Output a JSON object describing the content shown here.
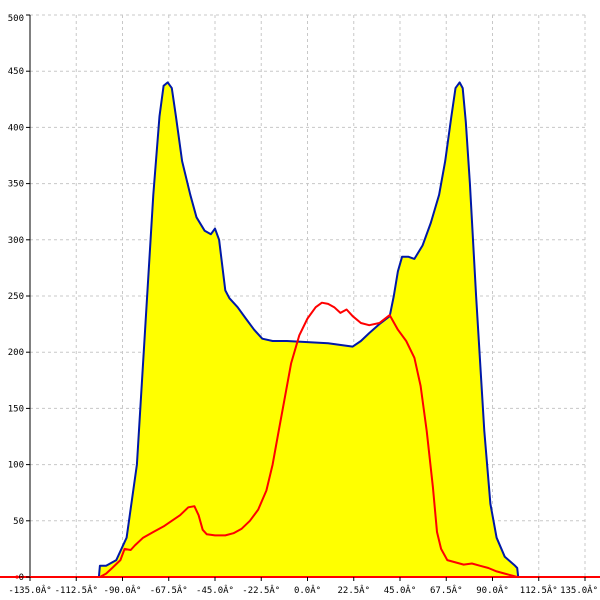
{
  "chart_data": {
    "type": "area",
    "title": "",
    "xlabel": "",
    "ylabel": "",
    "xlim": [
      -135,
      135
    ],
    "ylim": [
      0,
      500
    ],
    "grid": true,
    "x_ticks": [
      -135,
      -112.5,
      -90,
      -67.5,
      -45,
      -22.5,
      0,
      22.5,
      45,
      67.5,
      90,
      112.5,
      135
    ],
    "x_tick_labels": [
      "-135.0Â°",
      "-112.5Â°",
      "-90.0Â°",
      "-67.5Â°",
      "-45.0Â°",
      "-22.5Â°",
      "0.0Â°",
      "22.5Â°",
      "45.0Â°",
      "67.5Â°",
      "90.0Â°",
      "112.5Â°",
      "135.0Â°"
    ],
    "y_ticks": [
      0,
      50,
      100,
      150,
      200,
      250,
      300,
      350,
      400,
      450,
      500
    ],
    "y_tick_labels": [
      "0",
      "50",
      "100",
      "150",
      "200",
      "250",
      "300",
      "350",
      "400",
      "450",
      "500"
    ],
    "series": [
      {
        "color": "#0018a8",
        "fill": "#ffff00",
        "points": [
          [
            -101.5,
            0
          ],
          [
            -101,
            10
          ],
          [
            -98,
            10
          ],
          [
            -93,
            15
          ],
          [
            -88,
            35
          ],
          [
            -83,
            100
          ],
          [
            -79,
            220
          ],
          [
            -75,
            340
          ],
          [
            -72,
            410
          ],
          [
            -70,
            437
          ],
          [
            -68,
            440
          ],
          [
            -66,
            435
          ],
          [
            -64,
            410
          ],
          [
            -61,
            370
          ],
          [
            -57,
            340
          ],
          [
            -54,
            320
          ],
          [
            -50,
            308
          ],
          [
            -47,
            305
          ],
          [
            -45,
            310
          ],
          [
            -43,
            300
          ],
          [
            -40,
            255
          ],
          [
            -38,
            248
          ],
          [
            -34,
            240
          ],
          [
            -30,
            230
          ],
          [
            -26,
            220
          ],
          [
            -22,
            212
          ],
          [
            -17,
            210
          ],
          [
            -10,
            210
          ],
          [
            0,
            209
          ],
          [
            10,
            208
          ],
          [
            22,
            205
          ],
          [
            26,
            210
          ],
          [
            30,
            217
          ],
          [
            35,
            225
          ],
          [
            40,
            232
          ],
          [
            42,
            250
          ],
          [
            44,
            272
          ],
          [
            46,
            285
          ],
          [
            49,
            285
          ],
          [
            52,
            283
          ],
          [
            56,
            295
          ],
          [
            60,
            315
          ],
          [
            64,
            340
          ],
          [
            67,
            370
          ],
          [
            70,
            410
          ],
          [
            72,
            435
          ],
          [
            74,
            440
          ],
          [
            75.5,
            435
          ],
          [
            77,
            405
          ],
          [
            79,
            350
          ],
          [
            82,
            250
          ],
          [
            86,
            130
          ],
          [
            89,
            65
          ],
          [
            92,
            35
          ],
          [
            96,
            18
          ],
          [
            101,
            10
          ],
          [
            102,
            8
          ],
          [
            102.5,
            0
          ]
        ]
      },
      {
        "color": "#ff0000",
        "points": [
          [
            -101,
            0
          ],
          [
            -98,
            3
          ],
          [
            -95,
            8
          ],
          [
            -91,
            15
          ],
          [
            -89,
            25
          ],
          [
            -86,
            24
          ],
          [
            -84,
            28
          ],
          [
            -80,
            35
          ],
          [
            -75,
            40
          ],
          [
            -70,
            45
          ],
          [
            -66,
            50
          ],
          [
            -62,
            55
          ],
          [
            -58,
            62
          ],
          [
            -55,
            63
          ],
          [
            -53,
            55
          ],
          [
            -51,
            42
          ],
          [
            -49,
            38
          ],
          [
            -45,
            37
          ],
          [
            -40,
            37
          ],
          [
            -36,
            39
          ],
          [
            -32,
            43
          ],
          [
            -28,
            50
          ],
          [
            -24,
            60
          ],
          [
            -20,
            77
          ],
          [
            -17,
            100
          ],
          [
            -14,
            130
          ],
          [
            -11,
            160
          ],
          [
            -8,
            190
          ],
          [
            -4,
            215
          ],
          [
            0,
            230
          ],
          [
            4,
            240
          ],
          [
            7,
            244
          ],
          [
            10,
            243
          ],
          [
            13,
            240
          ],
          [
            16,
            235
          ],
          [
            19,
            238
          ],
          [
            22,
            232
          ],
          [
            26,
            226
          ],
          [
            30,
            224
          ],
          [
            35,
            226
          ],
          [
            40,
            233
          ],
          [
            44,
            220
          ],
          [
            48,
            210
          ],
          [
            52,
            195
          ],
          [
            55,
            170
          ],
          [
            58,
            130
          ],
          [
            61,
            80
          ],
          [
            63,
            40
          ],
          [
            65,
            25
          ],
          [
            68,
            15
          ],
          [
            72,
            13
          ],
          [
            76,
            11
          ],
          [
            80,
            12
          ],
          [
            84,
            10
          ],
          [
            88,
            8
          ],
          [
            92,
            5
          ],
          [
            96,
            3
          ],
          [
            100,
            1
          ],
          [
            102,
            0
          ]
        ]
      }
    ]
  }
}
